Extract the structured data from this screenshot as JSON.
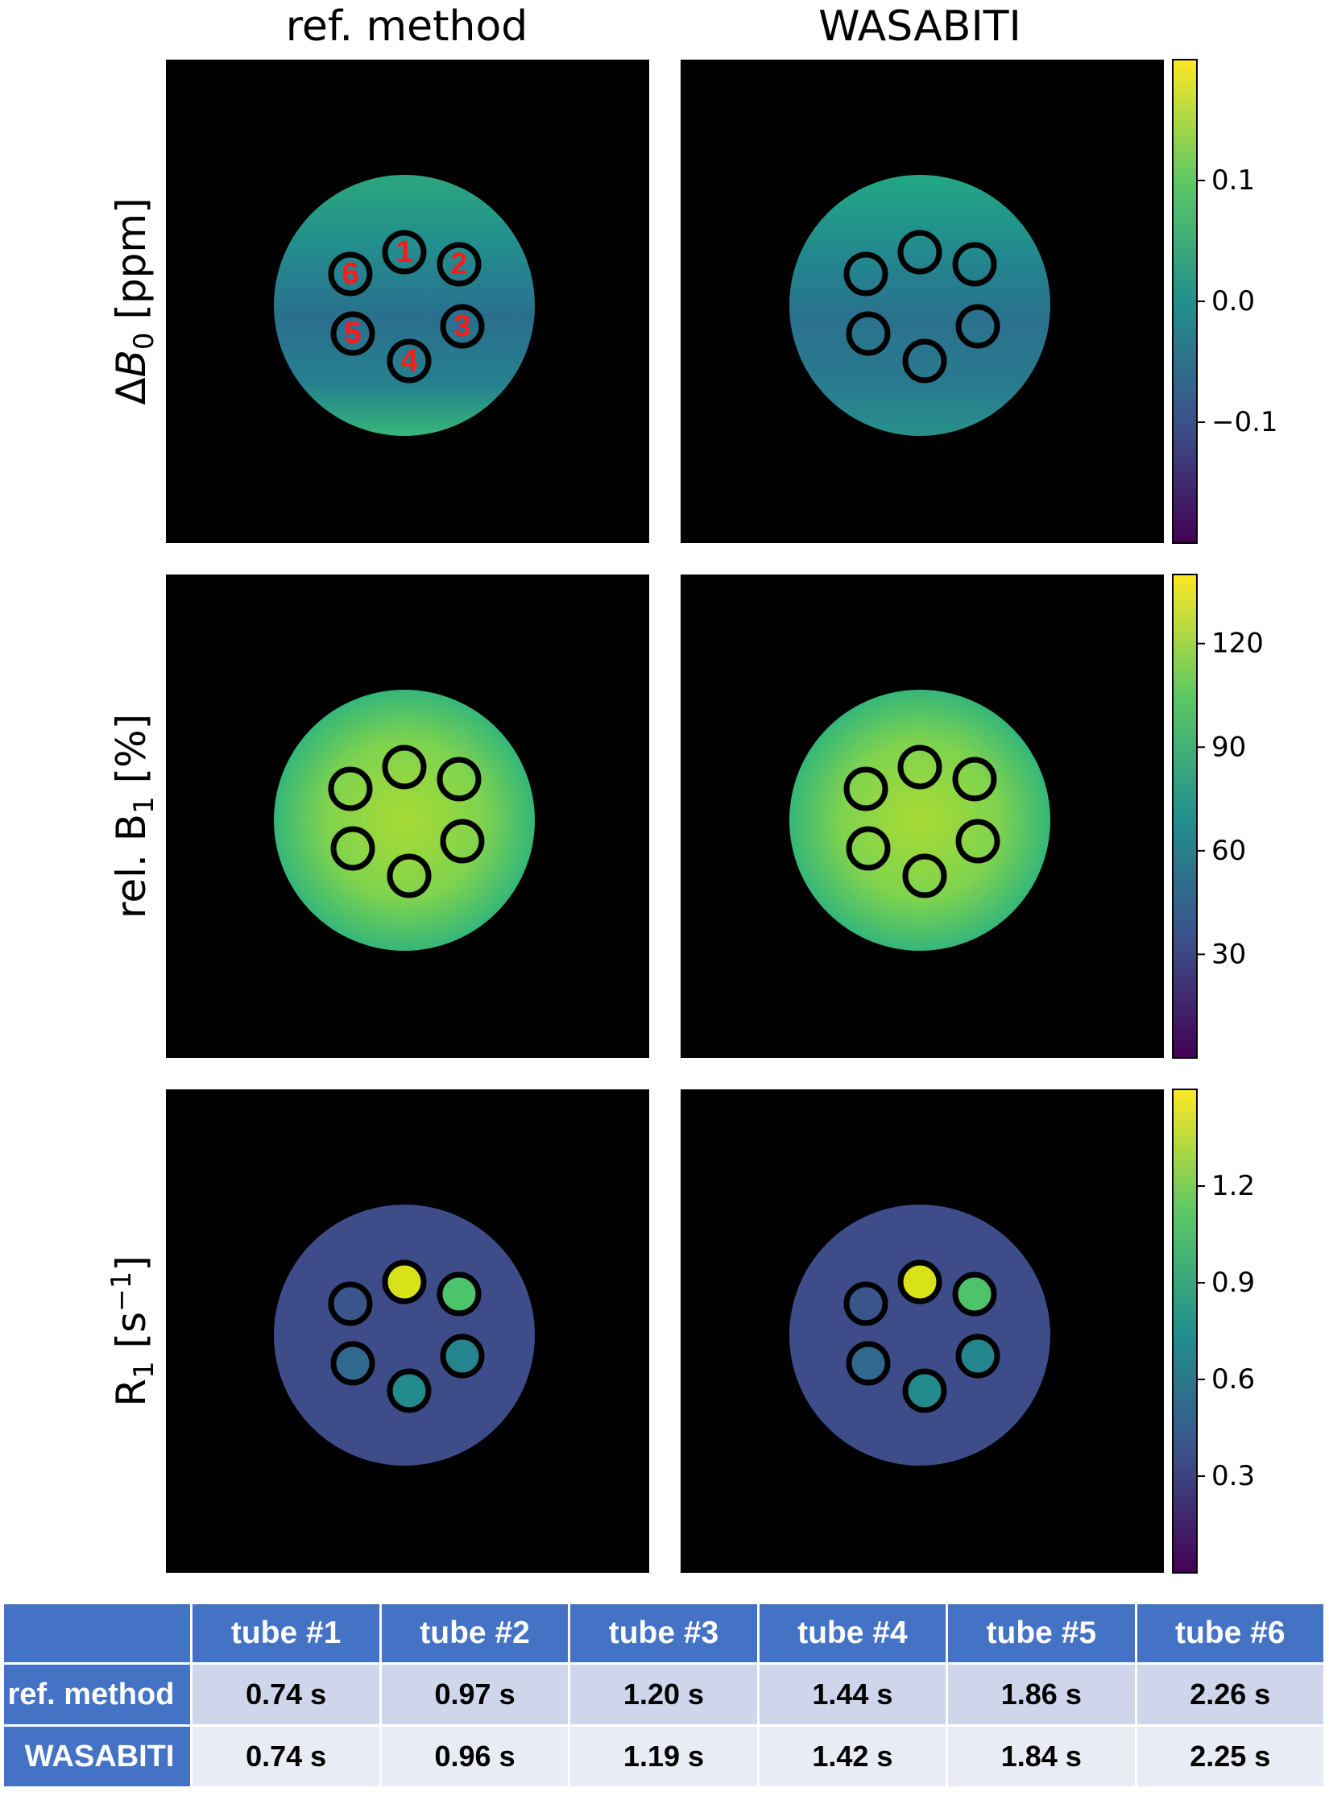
{
  "columns": [
    "ref. method",
    "WASABITI"
  ],
  "rows": [
    {
      "label_html": "&#916;<tspan font-style=\"italic\">B</tspan><tspan font-size=\"34\" dy=\"10\">0</tspan><tspan dy=\"-10\"> [ppm]</tspan>",
      "colorbar": {
        "ticks": [
          "0.1",
          "0.0",
          "−0.1"
        ],
        "tick_values": [
          0.1,
          0.0,
          -0.1
        ],
        "range": [
          -0.2,
          0.2
        ]
      },
      "tube_numbers": [
        "1",
        "2",
        "3",
        "4",
        "5",
        "6"
      ],
      "tube_fill": null
    },
    {
      "label_html": "rel. B<tspan font-size=\"34\" dy=\"10\">1</tspan><tspan dy=\"-10\"> [%]</tspan>",
      "colorbar": {
        "ticks": [
          "120",
          "90",
          "60",
          "30"
        ],
        "tick_values": [
          120,
          90,
          60,
          30
        ],
        "range": [
          0,
          140
        ]
      },
      "tube_numbers": [],
      "tube_fill": null
    },
    {
      "label_html": "R<tspan font-size=\"34\" dy=\"10\">1</tspan><tspan dy=\"-10\"> [s</tspan><tspan font-size=\"34\" dy=\"-18\">−1</tspan><tspan dy=\"18\">]</tspan>",
      "colorbar": {
        "ticks": [
          "1.2",
          "0.9",
          "0.6",
          "0.3"
        ],
        "tick_values": [
          1.2,
          0.9,
          0.6,
          0.3
        ],
        "range": [
          0,
          1.5
        ]
      },
      "tube_numbers": [],
      "tube_fill": [
        "#d7e219",
        "#4dc36b",
        "#25858e",
        "#238a8d",
        "#31688e",
        "#3a548c"
      ]
    }
  ],
  "table": {
    "header": [
      "",
      "tube #1",
      "tube #2",
      "tube #3",
      "tube #4",
      "tube #5",
      "tube #6"
    ],
    "body": [
      {
        "label": "ref. method",
        "values": [
          "0.74 s",
          "0.97 s",
          "1.20 s",
          "1.44 s",
          "1.86 s",
          "2.26 s"
        ]
      },
      {
        "label": "WASABITI",
        "values": [
          "0.74 s",
          "0.96 s",
          "1.19 s",
          "1.42 s",
          "1.84 s",
          "2.25 s"
        ]
      }
    ]
  },
  "colors": {
    "viridis": [
      "#440154",
      "#3b528b",
      "#21908d",
      "#5dc863",
      "#fde725"
    ],
    "header_blue": "#4472c4",
    "row_dark": "#cfd5ea",
    "row_light": "#e9ebf5",
    "tube_number_red": "#ff1a1a"
  }
}
